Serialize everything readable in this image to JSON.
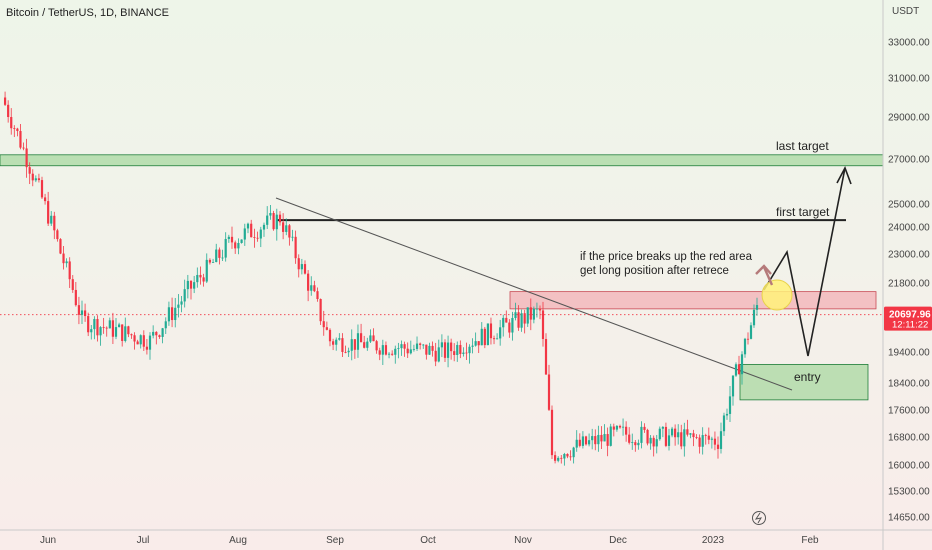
{
  "title": "Bitcoin / TetherUS, 1D, BINANCE",
  "currency_label": "USDT",
  "price_badge": {
    "price": "20697.96",
    "countdown": "12:11:22",
    "color": "#f23645"
  },
  "colors": {
    "up": "#22ab94",
    "down": "#f23645",
    "zone_green": "#a8d8a0",
    "zone_red": "#f2b8bc",
    "highlight": "#fff27a"
  },
  "chart_data": {
    "type": "candlestick",
    "title": "Bitcoin / TetherUS, 1D, BINANCE",
    "x_labels": [
      "Jun",
      "Jul",
      "Aug",
      "Sep",
      "Oct",
      "Nov",
      "Dec",
      "2023",
      "Feb"
    ],
    "y_ticks": [
      33000,
      31000,
      29000,
      27000,
      25000,
      24000,
      23000,
      21800,
      19400,
      18400,
      17600,
      16800,
      16000,
      15300,
      14650
    ],
    "y_tick_labels": [
      "33000.00",
      "31000.00",
      "29000.00",
      "27000.00",
      "25000.00",
      "24000.00",
      "23000.00",
      "21800.00",
      "19400.00",
      "18400.00",
      "17600.00",
      "16800.00",
      "16000.00",
      "15300.00",
      "14650.00"
    ],
    "current_price": 20697.96,
    "zones": [
      {
        "label": "last target",
        "low": 26700,
        "high": 27200,
        "color": "green"
      },
      {
        "label": "",
        "low": 20900,
        "high": 21500,
        "color": "red"
      },
      {
        "label": "entry",
        "low": 17900,
        "high": 19000,
        "color": "green"
      }
    ],
    "levels": [
      {
        "label": "first target",
        "price": 24300
      }
    ],
    "annotations": [
      "last target",
      "first target",
      "if the price breaks up the red area",
      "get long position after retrece",
      "entry"
    ],
    "waypoints": [
      {
        "month": "Jun",
        "close": 30000
      },
      {
        "month": "Jun",
        "close": 20500
      },
      {
        "month": "Jul",
        "close": 19800
      },
      {
        "month": "Aug",
        "close": 23500
      },
      {
        "month": "Aug",
        "close": 24400
      },
      {
        "month": "Sep",
        "close": 19800
      },
      {
        "month": "Oct",
        "close": 19400
      },
      {
        "month": "Nov",
        "close": 20800
      },
      {
        "month": "Nov",
        "close": 16300
      },
      {
        "month": "Dec",
        "close": 16900
      },
      {
        "month": "2023",
        "close": 16700
      },
      {
        "month": "2023",
        "close": 21000
      }
    ]
  }
}
